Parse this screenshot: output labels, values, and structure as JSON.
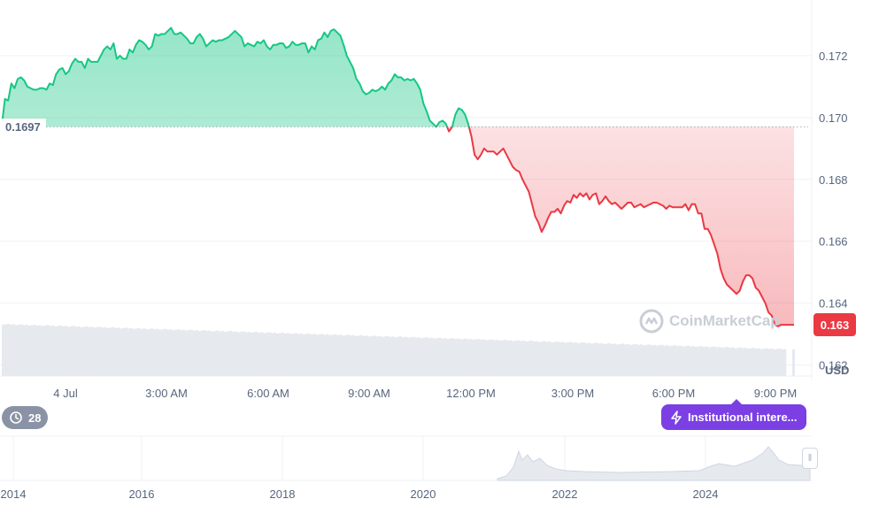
{
  "chart_data": [
    {
      "type": "area",
      "x_ticks": [
        "4 Jul",
        "3:00 AM",
        "6:00 AM",
        "9:00 AM",
        "12:00 PM",
        "3:00 PM",
        "6:00 PM",
        "9:00 PM"
      ],
      "y_ticks": [
        "0.162",
        "0.164",
        "0.166",
        "0.168",
        "0.170",
        "0.172"
      ],
      "ylim": [
        0.1615,
        0.1738
      ],
      "reference_price": 0.1697,
      "reference_label": "0.1697",
      "current_price_label": "0.163",
      "currency": "USD",
      "colors": {
        "above": "#16c784",
        "below": "#ea3943"
      },
      "series": [
        {
          "values": [
            0.16975,
            0.1706,
            0.17055,
            0.1711,
            0.17095,
            0.17125,
            0.1713,
            0.1712,
            0.171,
            0.17095,
            0.1709,
            0.1709,
            0.17095,
            0.17095,
            0.1709,
            0.1711,
            0.17105,
            0.1714,
            0.17155,
            0.1716,
            0.1714,
            0.1715,
            0.17175,
            0.1719,
            0.1718,
            0.1718,
            0.1716,
            0.1719,
            0.1718,
            0.1718,
            0.1718,
            0.172,
            0.1722,
            0.1723,
            0.1722,
            0.1724,
            0.1719,
            0.172,
            0.1719,
            0.1719,
            0.1722,
            0.1721,
            0.17235,
            0.1725,
            0.17245,
            0.17235,
            0.1722,
            0.1723,
            0.1727,
            0.17265,
            0.1727,
            0.1727,
            0.1728,
            0.1729,
            0.1727,
            0.1727,
            0.17275,
            0.17265,
            0.17255,
            0.1724,
            0.1724,
            0.1726,
            0.1727,
            0.17255,
            0.1723,
            0.1724,
            0.1725,
            0.17245,
            0.1725,
            0.1725,
            0.17255,
            0.1726,
            0.1727,
            0.1728,
            0.1727,
            0.1726,
            0.1723,
            0.1724,
            0.17235,
            0.1723,
            0.17245,
            0.1724,
            0.1725,
            0.1723,
            0.1722,
            0.17235,
            0.17235,
            0.1724,
            0.1724,
            0.17225,
            0.1723,
            0.17245,
            0.17235,
            0.17235,
            0.1724,
            0.1724,
            0.1721,
            0.1723,
            0.1722,
            0.1725,
            0.17255,
            0.17275,
            0.1726,
            0.1728,
            0.17285,
            0.17275,
            0.17265,
            0.17235,
            0.172,
            0.1718,
            0.1716,
            0.17125,
            0.1711,
            0.17085,
            0.17075,
            0.1708,
            0.1709,
            0.17085,
            0.1709,
            0.171,
            0.1709,
            0.1711,
            0.1712,
            0.1714,
            0.1713,
            0.1713,
            0.1712,
            0.17125,
            0.1712,
            0.17125,
            0.1711,
            0.1709,
            0.17045,
            0.1702,
            0.1699,
            0.1698,
            0.1697,
            0.16985,
            0.1699,
            0.1698,
            0.16955,
            0.1697,
            0.1701,
            0.1703,
            0.17025,
            0.1701,
            0.1698,
            0.1694,
            0.1688,
            0.16865,
            0.1688,
            0.169,
            0.1689,
            0.1689,
            0.1689,
            0.1688,
            0.1689,
            0.169,
            0.1688,
            0.1686,
            0.1684,
            0.1683,
            0.16825,
            0.168,
            0.1678,
            0.1676,
            0.1672,
            0.1668,
            0.1666,
            0.1663,
            0.1665,
            0.16675,
            0.16695,
            0.16695,
            0.16705,
            0.1669,
            0.16715,
            0.1673,
            0.16725,
            0.1675,
            0.1674,
            0.16755,
            0.16745,
            0.16755,
            0.16735,
            0.1675,
            0.16755,
            0.1672,
            0.1673,
            0.16745,
            0.1673,
            0.1672,
            0.16725,
            0.16715,
            0.16705,
            0.16715,
            0.16725,
            0.16725,
            0.1671,
            0.16715,
            0.1672,
            0.1671,
            0.16715,
            0.1672,
            0.16725,
            0.16725,
            0.1672,
            0.16715,
            0.16705,
            0.16715,
            0.1671,
            0.1671,
            0.1671,
            0.1671,
            0.1672,
            0.167,
            0.1672,
            0.1672,
            0.1669,
            0.1669,
            0.1664,
            0.1664,
            0.1662,
            0.1659,
            0.1656,
            0.1651,
            0.1648,
            0.1646,
            0.1645,
            0.1644,
            0.1643,
            0.1644,
            0.1647,
            0.1649,
            0.1649,
            0.1648,
            0.1645,
            0.1644,
            0.1642,
            0.164,
            0.1637,
            0.1636,
            0.1633,
            0.16325,
            0.1633,
            0.1633,
            0.1633,
            0.1633,
            0.1633
          ]
        }
      ]
    },
    {
      "type": "area",
      "x_ticks": [
        "2014",
        "2016",
        "2018",
        "2020",
        "2022",
        "2024"
      ]
    }
  ],
  "watermark": "CoinMarketCap",
  "history_chip": {
    "count": "28"
  },
  "events_chip": {
    "label": "Institutional intere..."
  }
}
